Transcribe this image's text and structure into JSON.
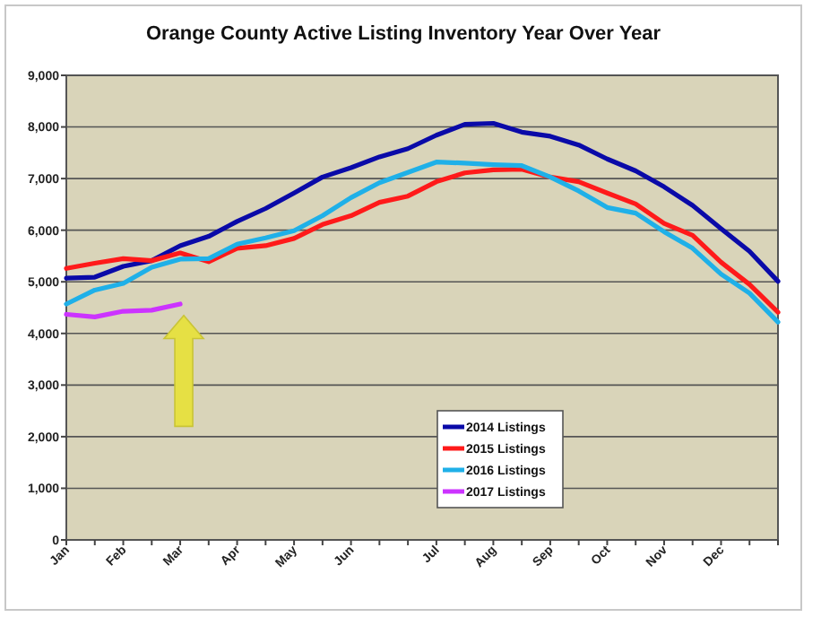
{
  "chart_data": {
    "type": "line",
    "title": "Orange County Active Listing Inventory Year Over Year",
    "categories": [
      "Jan",
      null,
      "Feb",
      null,
      "Mar",
      null,
      "Apr",
      null,
      "May",
      null,
      "Jun",
      null,
      null,
      "Jul",
      null,
      "Aug",
      null,
      "Sep",
      null,
      "Oct",
      null,
      "Nov",
      null,
      "Dec",
      null,
      null
    ],
    "series": [
      {
        "name": "2014 Listings",
        "color": "#0a0aa8",
        "values": [
          5070,
          5090,
          5300,
          5410,
          5700,
          5880,
          6170,
          6420,
          6720,
          7030,
          7210,
          7420,
          7580,
          7840,
          8050,
          8070,
          7900,
          7820,
          7650,
          7380,
          7150,
          6840,
          6480,
          6030,
          5590,
          5010
        ]
      },
      {
        "name": "2015 Listings",
        "color": "#ff1a1a",
        "values": [
          5260,
          5360,
          5450,
          5410,
          5560,
          5390,
          5650,
          5700,
          5840,
          6110,
          6280,
          6540,
          6660,
          6940,
          7110,
          7170,
          7180,
          7030,
          6940,
          6720,
          6510,
          6130,
          5900,
          5380,
          4950,
          4410
        ]
      },
      {
        "name": "2016 Listings",
        "color": "#1fb0e8",
        "values": [
          4570,
          4840,
          4970,
          5280,
          5440,
          5450,
          5730,
          5850,
          5990,
          6280,
          6630,
          6920,
          7120,
          7320,
          7300,
          7270,
          7250,
          7030,
          6760,
          6440,
          6330,
          5970,
          5650,
          5150,
          4780,
          4220
        ]
      },
      {
        "name": "2017 Listings",
        "color": "#cc33ff",
        "values": [
          4370,
          4320,
          4430,
          4450,
          4570,
          null,
          null,
          null,
          null,
          null,
          null,
          null,
          null,
          null,
          null,
          null,
          null,
          null,
          null,
          null,
          null,
          null,
          null,
          null,
          null,
          null
        ]
      }
    ],
    "ylim": [
      0,
      9000
    ],
    "yticks": [
      {
        "value": 0,
        "label": "0"
      },
      {
        "value": 1000,
        "label": "1,000"
      },
      {
        "value": 2000,
        "label": "2,000"
      },
      {
        "value": 3000,
        "label": "3,000"
      },
      {
        "value": 4000,
        "label": "4,000"
      },
      {
        "value": 5000,
        "label": "5,000"
      },
      {
        "value": 6000,
        "label": "6,000"
      },
      {
        "value": 7000,
        "label": "7,000"
      },
      {
        "value": 8000,
        "label": "8,000"
      },
      {
        "value": 9000,
        "label": "9,000"
      }
    ],
    "grid": "y",
    "legend": "bottom right",
    "marker": "none",
    "line_style": "solid"
  }
}
